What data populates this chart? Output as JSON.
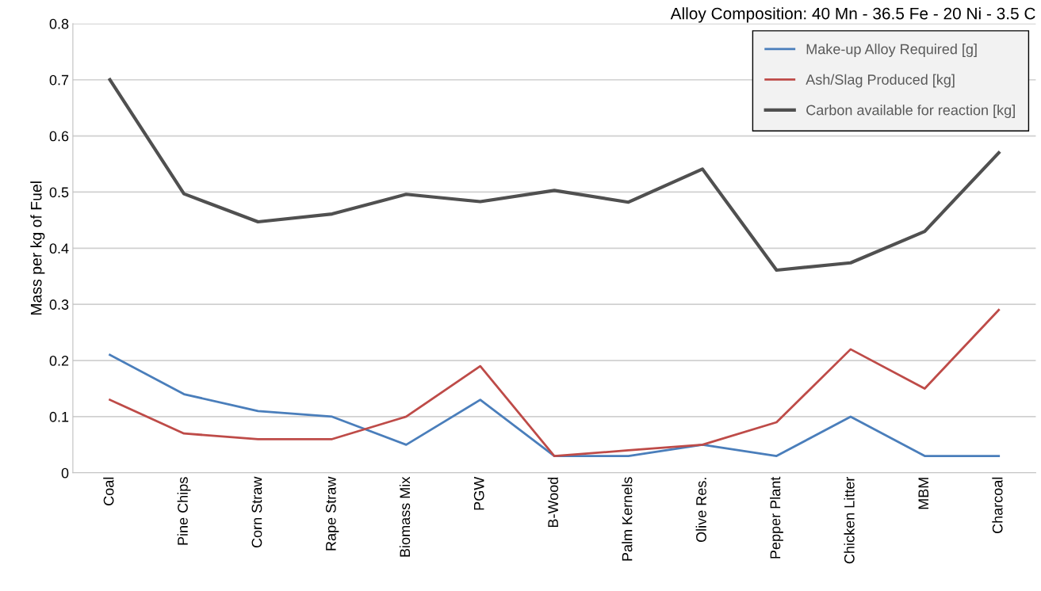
{
  "chart_data": {
    "type": "line",
    "title": "Alloy Composition: 40 Mn - 36.5 Fe - 20 Ni - 3.5 C",
    "ylabel": "Mass per kg of Fuel",
    "categories": [
      "Coal",
      "Pine Chips",
      "Corn Straw",
      "Rape Straw",
      "Biomass Mix",
      "PGW",
      "B-Wood",
      "Palm Kernels",
      "Olive Res.",
      "Pepper Plant",
      "Chicken Litter",
      "MBM",
      "Charcoal"
    ],
    "series": [
      {
        "name": "Make-up Alloy Required [g]",
        "color": "#4a7ebb",
        "values": [
          0.21,
          0.14,
          0.11,
          0.1,
          0.05,
          0.13,
          0.03,
          0.03,
          0.05,
          0.03,
          0.1,
          0.03,
          0.03
        ]
      },
      {
        "name": "Ash/Slag Produced [kg]",
        "color": "#be4b48",
        "values": [
          0.13,
          0.07,
          0.06,
          0.06,
          0.1,
          0.19,
          0.03,
          0.04,
          0.05,
          0.09,
          0.22,
          0.15,
          0.29
        ]
      },
      {
        "name": "Carbon available for reaction [kg]",
        "color": "#505050",
        "values": [
          0.7,
          0.497,
          0.447,
          0.461,
          0.496,
          0.483,
          0.503,
          0.482,
          0.541,
          0.361,
          0.374,
          0.43,
          0.57
        ]
      }
    ],
    "ylim": [
      0,
      0.8
    ],
    "yticks": [
      0,
      0.1,
      0.2,
      0.3,
      0.4,
      0.5,
      0.6,
      0.7,
      0.8
    ],
    "grid": "y",
    "legend": "top right",
    "marker": "none",
    "line_style": "solid"
  }
}
